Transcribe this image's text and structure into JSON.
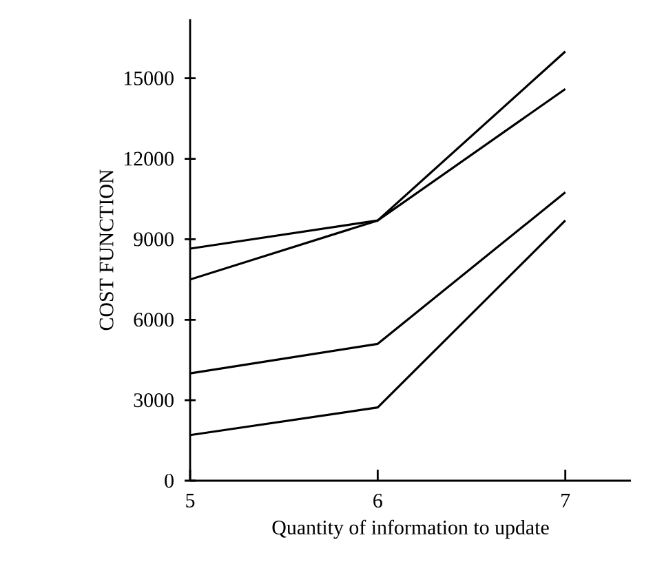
{
  "chart_data": {
    "type": "line",
    "xlabel": "Quantity of information to update",
    "ylabel": "COST FUNCTION",
    "x": [
      5,
      6,
      7
    ],
    "series": [
      {
        "color": "#000000",
        "values": [
          8650,
          9700,
          16000
        ]
      },
      {
        "color": "#000000",
        "values": [
          7500,
          9700,
          14600
        ]
      },
      {
        "color": "#000000",
        "values": [
          4000,
          5100,
          10750
        ]
      },
      {
        "color": "#000000",
        "values": [
          1700,
          2730,
          9700
        ]
      }
    ],
    "xlim": [
      5,
      7.35
    ],
    "ylim": [
      0,
      17200
    ],
    "xticks": [
      5,
      6,
      7
    ],
    "yticks": [
      0,
      3000,
      6000,
      9000,
      12000,
      15000
    ],
    "marker": "none",
    "line_style": "solid"
  }
}
